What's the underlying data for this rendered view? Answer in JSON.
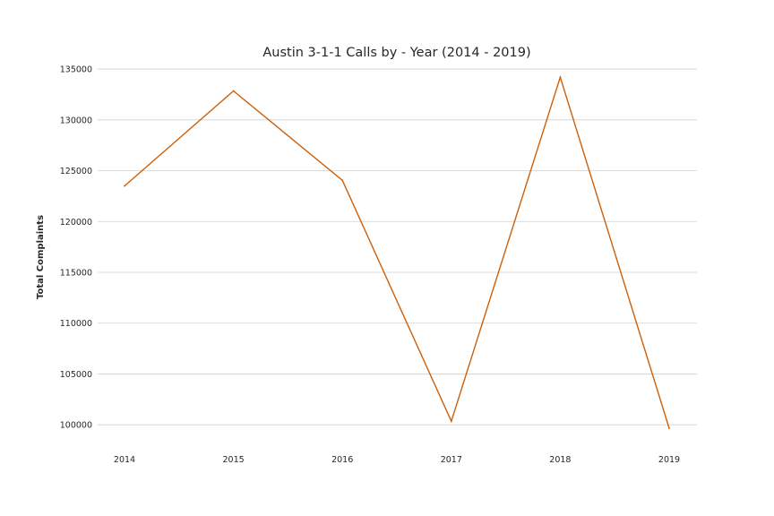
{
  "chart_data": {
    "type": "line",
    "title": "Austin 3-1-1 Calls by - Year (2014 - 2019)",
    "xlabel": "",
    "ylabel": "Total Complaints",
    "x": [
      "2014",
      "2015",
      "2016",
      "2017",
      "2018",
      "2019"
    ],
    "series": [
      {
        "name": "Total Complaints",
        "values": [
          123500,
          132850,
          124050,
          100350,
          134200,
          99650
        ]
      }
    ],
    "yticks": [
      100000,
      105000,
      110000,
      115000,
      120000,
      125000,
      130000,
      135000
    ],
    "ylim": [
      97900,
      135800
    ],
    "grid": true,
    "line_color": "#cc5f0a"
  }
}
